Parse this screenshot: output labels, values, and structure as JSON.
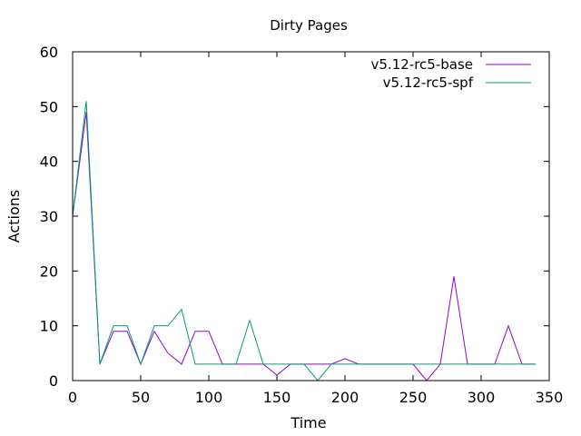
{
  "chart_data": {
    "type": "line",
    "title": "Dirty Pages",
    "xlabel": "Time",
    "ylabel": "Actions",
    "xlim": [
      0,
      350
    ],
    "ylim": [
      0,
      60
    ],
    "xticks": [
      0,
      50,
      100,
      150,
      200,
      250,
      300,
      350
    ],
    "yticks": [
      0,
      10,
      20,
      30,
      40,
      50,
      60
    ],
    "grid": false,
    "legend": "top-right",
    "x": [
      0,
      10,
      20,
      30,
      40,
      50,
      60,
      70,
      80,
      90,
      100,
      110,
      120,
      130,
      140,
      150,
      160,
      170,
      180,
      190,
      200,
      210,
      220,
      230,
      240,
      250,
      260,
      270,
      280,
      290,
      300,
      310,
      320,
      330,
      340
    ],
    "series": [
      {
        "name": "v5.12-rc5-base",
        "color": "#9400d3",
        "values": [
          30,
          49,
          3,
          9,
          9,
          3,
          9,
          5,
          3,
          9,
          9,
          3,
          3,
          3,
          3,
          1,
          3,
          3,
          3,
          3,
          4,
          3,
          3,
          3,
          3,
          3,
          0,
          3,
          19,
          3,
          3,
          3,
          10,
          3,
          3
        ]
      },
      {
        "name": "v5.12-rc5-spf",
        "color": "#009e73",
        "values": [
          30,
          51,
          3,
          10,
          10,
          3,
          10,
          10,
          13,
          3,
          3,
          3,
          3,
          11,
          3,
          3,
          3,
          3,
          0,
          3,
          3,
          3,
          3,
          3,
          3,
          3,
          3,
          3,
          3,
          3,
          3,
          3,
          3,
          3,
          3
        ]
      }
    ]
  }
}
